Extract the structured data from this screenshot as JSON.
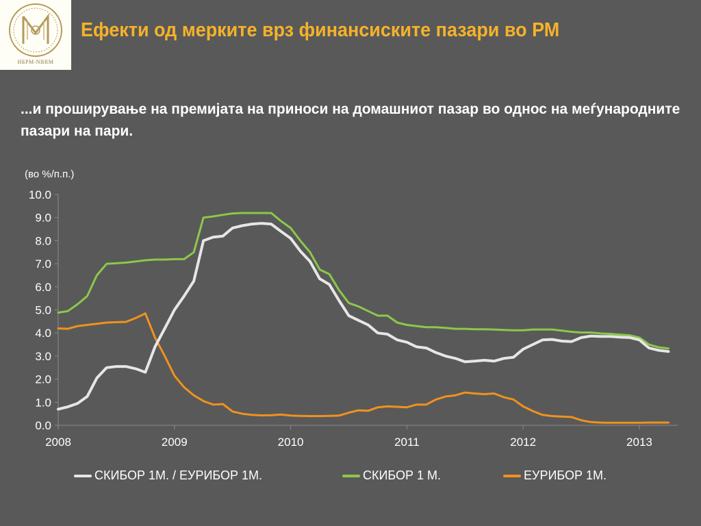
{
  "logo": {
    "text": "НБРМ-NBRM",
    "colors": {
      "background": "#fffef6",
      "ink": "#b39a5a"
    }
  },
  "title": "Ефекти од мерките врз финансиските пазари во РМ",
  "subtitle": "...и проширување на премијата на приноси на домашниот пазар во однос на меѓународните пазари на пари.",
  "unit_label": "(во  %/п.п.)",
  "colors": {
    "title": "#f5b22a",
    "background": "#595959",
    "text": "#ffffff"
  },
  "chart_data": {
    "type": "line",
    "xlim": [
      2008,
      2013.33
    ],
    "ylim": [
      0,
      10
    ],
    "x_ticks": [
      "2008",
      "2009",
      "2010",
      "2011",
      "2012",
      "2013"
    ],
    "y_ticks": [
      "0.0",
      "1.0",
      "2.0",
      "3.0",
      "4.0",
      "5.0",
      "6.0",
      "7.0",
      "8.0",
      "9.0",
      "10.0"
    ],
    "grid": false,
    "legend_position": "bottom",
    "x": [
      2008.0,
      2008.083,
      2008.167,
      2008.25,
      2008.333,
      2008.417,
      2008.5,
      2008.583,
      2008.667,
      2008.75,
      2008.833,
      2008.917,
      2009.0,
      2009.083,
      2009.167,
      2009.25,
      2009.333,
      2009.417,
      2009.5,
      2009.583,
      2009.667,
      2009.75,
      2009.833,
      2009.917,
      2010.0,
      2010.083,
      2010.167,
      2010.25,
      2010.333,
      2010.417,
      2010.5,
      2010.583,
      2010.667,
      2010.75,
      2010.833,
      2010.917,
      2011.0,
      2011.083,
      2011.167,
      2011.25,
      2011.333,
      2011.417,
      2011.5,
      2011.583,
      2011.667,
      2011.75,
      2011.833,
      2011.917,
      2012.0,
      2012.083,
      2012.167,
      2012.25,
      2012.333,
      2012.417,
      2012.5,
      2012.583,
      2012.667,
      2012.75,
      2012.833,
      2012.917,
      2013.0,
      2013.083,
      2013.167,
      2013.25
    ],
    "series": [
      {
        "name": "СКИБОР 1М. / ЕУРИБОР 1М.",
        "color": "#e6e6e6",
        "values": [
          0.7,
          0.8,
          0.95,
          1.25,
          2.05,
          2.5,
          2.55,
          2.55,
          2.45,
          2.3,
          3.4,
          4.2,
          5.0,
          5.6,
          6.25,
          8.0,
          8.15,
          8.2,
          8.55,
          8.65,
          8.72,
          8.75,
          8.72,
          8.4,
          8.1,
          7.55,
          7.1,
          6.35,
          6.1,
          5.4,
          4.75,
          4.55,
          4.35,
          4.0,
          3.95,
          3.7,
          3.6,
          3.4,
          3.35,
          3.15,
          3.0,
          2.9,
          2.75,
          2.78,
          2.82,
          2.78,
          2.9,
          2.95,
          3.3,
          3.5,
          3.7,
          3.72,
          3.65,
          3.63,
          3.8,
          3.87,
          3.85,
          3.85,
          3.82,
          3.8,
          3.7,
          3.35,
          3.25,
          3.2
        ]
      },
      {
        "name": "СКИБОР 1 М.",
        "color": "#8cc84b",
        "values": [
          4.88,
          4.95,
          5.25,
          5.6,
          6.5,
          7.0,
          7.02,
          7.05,
          7.1,
          7.15,
          7.18,
          7.18,
          7.2,
          7.2,
          7.5,
          9.0,
          9.05,
          9.12,
          9.18,
          9.2,
          9.2,
          9.2,
          9.2,
          8.85,
          8.55,
          8.0,
          7.5,
          6.75,
          6.55,
          5.85,
          5.3,
          5.15,
          4.95,
          4.75,
          4.75,
          4.45,
          4.35,
          4.3,
          4.25,
          4.25,
          4.22,
          4.18,
          4.18,
          4.16,
          4.16,
          4.15,
          4.13,
          4.12,
          4.12,
          4.15,
          4.15,
          4.15,
          4.1,
          4.05,
          4.02,
          4.02,
          3.98,
          3.96,
          3.93,
          3.9,
          3.8,
          3.5,
          3.38,
          3.33
        ]
      },
      {
        "name": "ЕУРИБОР 1М.",
        "color": "#f0921e",
        "values": [
          4.2,
          4.18,
          4.3,
          4.35,
          4.4,
          4.45,
          4.47,
          4.48,
          4.65,
          4.85,
          3.8,
          3.0,
          2.15,
          1.65,
          1.3,
          1.05,
          0.9,
          0.92,
          0.6,
          0.5,
          0.45,
          0.43,
          0.44,
          0.47,
          0.42,
          0.41,
          0.4,
          0.4,
          0.41,
          0.42,
          0.55,
          0.65,
          0.63,
          0.78,
          0.82,
          0.8,
          0.78,
          0.9,
          0.9,
          1.12,
          1.25,
          1.3,
          1.42,
          1.38,
          1.35,
          1.38,
          1.22,
          1.12,
          0.82,
          0.62,
          0.45,
          0.4,
          0.38,
          0.36,
          0.22,
          0.14,
          0.12,
          0.11,
          0.11,
          0.11,
          0.11,
          0.12,
          0.12,
          0.12
        ]
      }
    ]
  }
}
